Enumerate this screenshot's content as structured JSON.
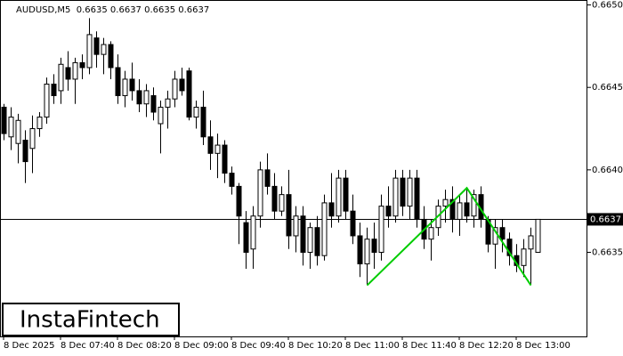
{
  "chart_data": {
    "type": "candlestick",
    "title": "AUDUSD,M5  0.6635 0.6637 0.6635 0.6637",
    "watermark": "InstaFintech",
    "categories": [
      "8 Dec 2025",
      null,
      null,
      null,
      null,
      null,
      null,
      null,
      "8 Dec 07:40",
      null,
      null,
      null,
      null,
      null,
      null,
      null,
      "8 Dec 08:20",
      null,
      null,
      null,
      null,
      null,
      null,
      null,
      "8 Dec 09:00",
      null,
      null,
      null,
      null,
      null,
      null,
      null,
      "8 Dec 09:40",
      null,
      null,
      null,
      null,
      null,
      null,
      null,
      "8 Dec 10:20",
      null,
      null,
      null,
      null,
      null,
      null,
      null,
      "8 Dec 11:00",
      null,
      null,
      null,
      null,
      null,
      null,
      null,
      "8 Dec 11:40",
      null,
      null,
      null,
      null,
      null,
      null,
      null,
      "8 Dec 12:20",
      null,
      null,
      null,
      null,
      null,
      null,
      null,
      "8 Dec 13:00",
      null,
      null,
      null
    ],
    "open": [
      0.66438,
      0.6642,
      0.66416,
      0.66418,
      0.66413,
      0.66425,
      0.66432,
      0.66452,
      0.66448,
      0.66462,
      0.66455,
      0.66465,
      0.66462,
      0.6648,
      0.6647,
      0.66476,
      0.66462,
      0.66445,
      0.66455,
      0.66448,
      0.6644,
      0.66445,
      0.66428,
      0.66438,
      0.66443,
      0.66455,
      0.6646,
      0.66432,
      0.66438,
      0.6642,
      0.6641,
      0.66415,
      0.66398,
      0.6639,
      0.66368,
      0.66352,
      0.66372,
      0.664,
      0.6639,
      0.66375,
      0.66385,
      0.6636,
      0.66372,
      0.6635,
      0.66365,
      0.66348,
      0.6638,
      0.66372,
      0.66395,
      0.66375,
      0.6636,
      0.66343,
      0.66358,
      0.6635,
      0.66378,
      0.66372,
      0.66395,
      0.66378,
      0.66395,
      0.6637,
      0.66358,
      0.66365,
      0.66378,
      0.66382,
      0.6637,
      0.6638,
      0.66372,
      0.66385,
      0.6637,
      0.66355,
      0.66365,
      0.66358,
      0.66348,
      0.66342,
      0.66352,
      0.6635
    ],
    "high": [
      0.6644,
      0.66438,
      0.66434,
      0.66424,
      0.66433,
      0.66435,
      0.66456,
      0.66458,
      0.66468,
      0.66472,
      0.66468,
      0.6647,
      0.66492,
      0.66484,
      0.6648,
      0.66478,
      0.6647,
      0.6646,
      0.66465,
      0.66455,
      0.66452,
      0.6645,
      0.66442,
      0.66448,
      0.6646,
      0.66462,
      0.66462,
      0.66442,
      0.66448,
      0.6643,
      0.66422,
      0.66418,
      0.66402,
      0.66392,
      0.66375,
      0.66378,
      0.66405,
      0.6641,
      0.66398,
      0.6639,
      0.664,
      0.66378,
      0.66378,
      0.66368,
      0.66372,
      0.66385,
      0.66398,
      0.664,
      0.664,
      0.66385,
      0.66368,
      0.66365,
      0.66368,
      0.66385,
      0.6639,
      0.664,
      0.664,
      0.664,
      0.664,
      0.66378,
      0.6637,
      0.66382,
      0.66388,
      0.6639,
      0.66385,
      0.66388,
      0.66388,
      0.6639,
      0.66372,
      0.6637,
      0.6637,
      0.66362,
      0.66355,
      0.66358,
      0.66365,
      0.6637
    ],
    "low": [
      0.66418,
      0.66412,
      0.66404,
      0.66392,
      0.66398,
      0.6642,
      0.66428,
      0.6644,
      0.6644,
      0.66448,
      0.6644,
      0.66455,
      0.66458,
      0.66462,
      0.66458,
      0.66455,
      0.6644,
      0.66438,
      0.66442,
      0.66435,
      0.66432,
      0.6643,
      0.6641,
      0.66425,
      0.66438,
      0.66445,
      0.6643,
      0.66425,
      0.66415,
      0.664,
      0.66395,
      0.66392,
      0.66385,
      0.66355,
      0.6634,
      0.6634,
      0.66365,
      0.66385,
      0.6637,
      0.66372,
      0.66352,
      0.6635,
      0.66342,
      0.6634,
      0.66342,
      0.66345,
      0.66365,
      0.66368,
      0.6637,
      0.66355,
      0.66335,
      0.6633,
      0.6634,
      0.66345,
      0.66365,
      0.66368,
      0.66372,
      0.6637,
      0.66365,
      0.66352,
      0.66345,
      0.6636,
      0.66368,
      0.66362,
      0.6636,
      0.66368,
      0.66365,
      0.66365,
      0.6635,
      0.6634,
      0.6635,
      0.66342,
      0.66338,
      0.66335,
      0.6633,
      0.6635
    ],
    "close": [
      0.66422,
      0.66432,
      0.6643,
      0.66405,
      0.66425,
      0.66432,
      0.66452,
      0.66445,
      0.66464,
      0.66455,
      0.66465,
      0.66462,
      0.66482,
      0.6647,
      0.66476,
      0.66462,
      0.66445,
      0.66455,
      0.66448,
      0.6644,
      0.66448,
      0.66435,
      0.66438,
      0.66443,
      0.66455,
      0.66448,
      0.66432,
      0.66438,
      0.6642,
      0.6641,
      0.66415,
      0.66398,
      0.6639,
      0.66372,
      0.6635,
      0.66372,
      0.664,
      0.6639,
      0.66375,
      0.66385,
      0.6636,
      0.66372,
      0.6635,
      0.66365,
      0.66348,
      0.6638,
      0.66372,
      0.66395,
      0.66375,
      0.6636,
      0.66343,
      0.66358,
      0.6635,
      0.66378,
      0.66372,
      0.66395,
      0.66378,
      0.66395,
      0.6637,
      0.66358,
      0.66365,
      0.66378,
      0.66382,
      0.6637,
      0.6638,
      0.66372,
      0.66385,
      0.6637,
      0.66355,
      0.66365,
      0.66358,
      0.66348,
      0.66342,
      0.66352,
      0.6636,
      0.6637
    ],
    "up_color": "#ffffff",
    "down_color": "#000000",
    "last_price": 0.6637,
    "pattern": {
      "color": "#00cc00",
      "x": [
        51,
        65,
        74
      ],
      "prices": [
        0.6633,
        0.66389,
        0.6633
      ]
    },
    "ylim": [
      0.66299,
      0.66503
    ],
    "yticks": [
      {
        "value": 0.665,
        "label": "0.6650"
      },
      0.6645,
      {
        "value": 0.664,
        "label": "0.6640"
      },
      0.6635
    ],
    "grid": false
  }
}
